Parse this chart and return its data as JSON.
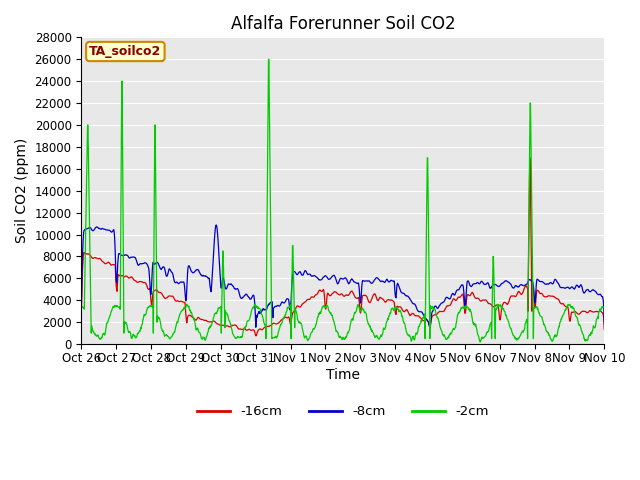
{
  "title": "Alfalfa Forerunner Soil CO2",
  "ylabel": "Soil CO2 (ppm)",
  "xlabel": "Time",
  "ylim": [
    0,
    28000
  ],
  "yticks": [
    0,
    2000,
    4000,
    6000,
    8000,
    10000,
    12000,
    14000,
    16000,
    18000,
    20000,
    22000,
    24000,
    26000,
    28000
  ],
  "xtick_labels": [
    "Oct 26",
    "Oct 27",
    "Oct 28",
    "Oct 29",
    "Oct 30",
    "Oct 31",
    "Nov 1",
    "Nov 2",
    "Nov 3",
    "Nov 4",
    "Nov 5",
    "Nov 6",
    "Nov 7",
    "Nov 8",
    "Nov 9",
    "Nov 10"
  ],
  "series_labels": [
    "-16cm",
    "-8cm",
    "-2cm"
  ],
  "series_colors": [
    "#dd0000",
    "#0000cc",
    "#00cc00"
  ],
  "legend_box_label": "TA_soilco2",
  "legend_box_facecolor": "#ffffcc",
  "legend_box_edgecolor": "#cc8800",
  "legend_box_textcolor": "#880000",
  "bg_color": "#e8e8e8",
  "title_fontsize": 12,
  "axis_fontsize": 10,
  "tick_fontsize": 8.5
}
